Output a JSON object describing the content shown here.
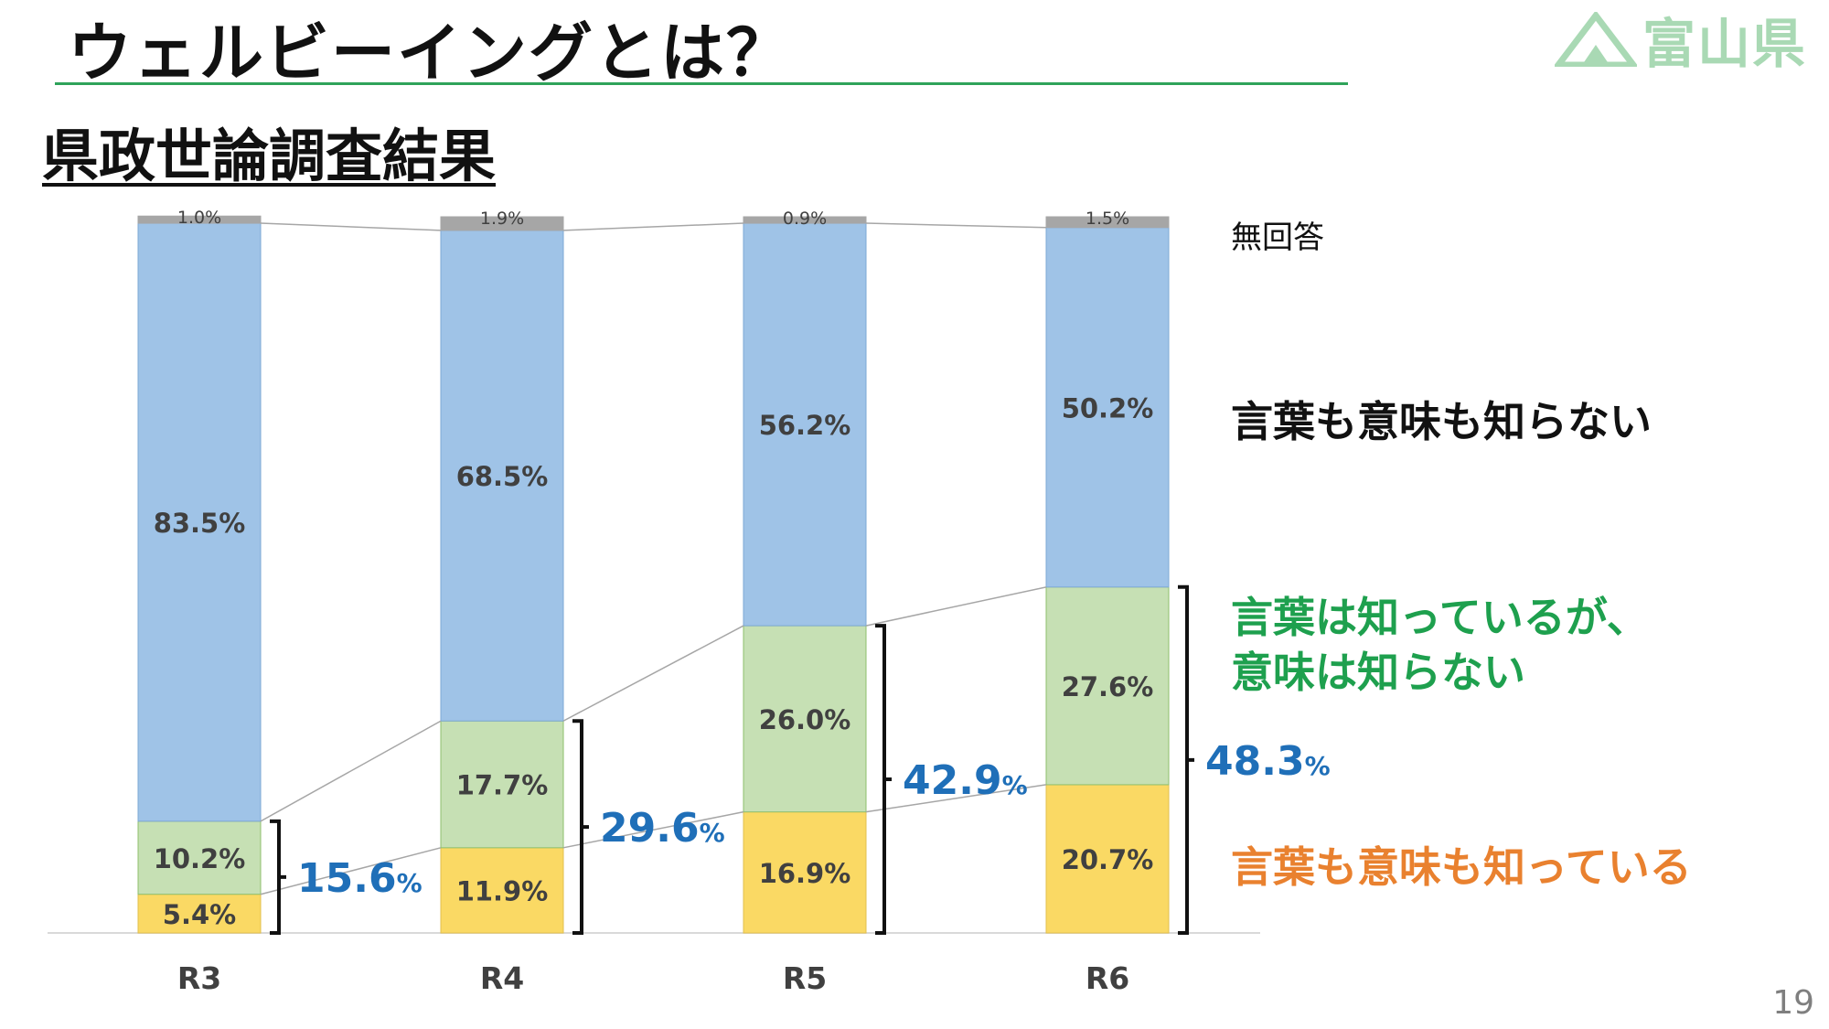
{
  "header": {
    "title": "ウェルビーイングとは？",
    "logo_text": "富山県",
    "subtitle": "県政世論調査結果"
  },
  "colors": {
    "know": "#fad964",
    "word_only": "#c6e0b4",
    "dont_know": "#9fc3e7",
    "no_answer": "#a6a6a6",
    "sum_label": "#1f6fb8",
    "legend_word": "#1ea04e",
    "legend_know": "#e9812f",
    "accent_rule": "#2fa35a"
  },
  "legend": {
    "no_answer": "無回答",
    "dont_know": "言葉も意味も知らない",
    "word_only_line1": "言葉は知っているが、",
    "word_only_line2": "意味は知らない",
    "know": "言葉も意味も知っている"
  },
  "chart_data": {
    "type": "bar",
    "stacked": true,
    "categories": [
      "R3",
      "R4",
      "R5",
      "R6"
    ],
    "ylim": [
      0,
      100
    ],
    "series": [
      {
        "key": "know",
        "name": "言葉も意味も知っている",
        "values": [
          5.4,
          11.9,
          16.9,
          20.7
        ],
        "labels": [
          "5.4%",
          "11.9%",
          "16.9%",
          "20.7%"
        ]
      },
      {
        "key": "word_only",
        "name": "言葉は知っているが、意味は知らない",
        "values": [
          10.2,
          17.7,
          26.0,
          27.6
        ],
        "labels": [
          "10.2%",
          "17.7%",
          "26.0%",
          "27.6%"
        ]
      },
      {
        "key": "dont_know",
        "name": "言葉も意味も知らない",
        "values": [
          83.5,
          68.5,
          56.2,
          50.2
        ],
        "labels": [
          "83.5%",
          "68.5%",
          "56.2%",
          "50.2%"
        ]
      },
      {
        "key": "no_answer",
        "name": "無回答",
        "values": [
          1.0,
          1.9,
          0.9,
          1.5
        ],
        "labels": [
          "1.0%",
          "1.9%",
          "0.9%",
          "1.5%"
        ]
      }
    ],
    "awareness_totals": [
      {
        "value": 15.6,
        "number": "15.6",
        "unit": "%"
      },
      {
        "value": 29.6,
        "number": "29.6",
        "unit": "%"
      },
      {
        "value": 42.9,
        "number": "42.9",
        "unit": "%"
      },
      {
        "value": 48.3,
        "number": "48.3",
        "unit": "%"
      }
    ]
  },
  "page_number": "19"
}
